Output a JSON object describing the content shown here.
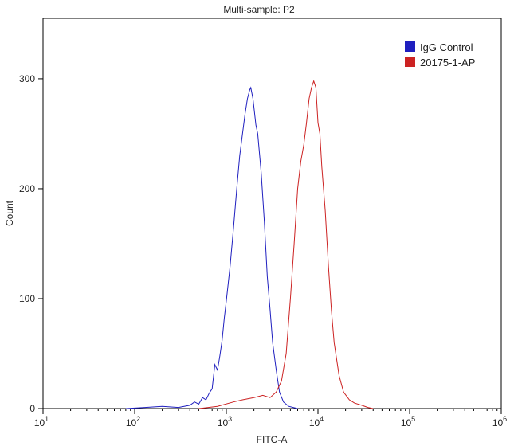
{
  "chart_data": {
    "type": "line",
    "title": "Multi-sample: P2",
    "xlabel": "FITC-A",
    "ylabel": "Count",
    "x_scale": "log",
    "xlim": [
      10,
      1000000
    ],
    "ylim": [
      0,
      355
    ],
    "x_ticks": [
      {
        "value": 10,
        "base": "10",
        "exp": "1"
      },
      {
        "value": 100,
        "base": "10",
        "exp": "2"
      },
      {
        "value": 1000,
        "base": "10",
        "exp": "3"
      },
      {
        "value": 10000,
        "base": "10",
        "exp": "4"
      },
      {
        "value": 100000,
        "base": "10",
        "exp": "5"
      },
      {
        "value": 1000000,
        "base": "10",
        "exp": "6"
      }
    ],
    "y_ticks": [
      0,
      100,
      200,
      300
    ],
    "grid": false,
    "legend_position": "top-right",
    "series": [
      {
        "name": "IgG Control",
        "color": "#1f1fbf",
        "points": [
          [
            80,
            0
          ],
          [
            130,
            1
          ],
          [
            200,
            2
          ],
          [
            300,
            1
          ],
          [
            400,
            3
          ],
          [
            450,
            6
          ],
          [
            500,
            4
          ],
          [
            550,
            10
          ],
          [
            600,
            8
          ],
          [
            650,
            14
          ],
          [
            700,
            18
          ],
          [
            750,
            40
          ],
          [
            800,
            35
          ],
          [
            850,
            48
          ],
          [
            900,
            62
          ],
          [
            950,
            82
          ],
          [
            1000,
            98
          ],
          [
            1100,
            130
          ],
          [
            1200,
            165
          ],
          [
            1300,
            200
          ],
          [
            1400,
            230
          ],
          [
            1500,
            250
          ],
          [
            1600,
            268
          ],
          [
            1700,
            282
          ],
          [
            1800,
            290
          ],
          [
            1850,
            292
          ],
          [
            1950,
            282
          ],
          [
            2100,
            258
          ],
          [
            2200,
            250
          ],
          [
            2400,
            215
          ],
          [
            2600,
            170
          ],
          [
            2800,
            120
          ],
          [
            3000,
            90
          ],
          [
            3200,
            60
          ],
          [
            3500,
            35
          ],
          [
            3800,
            15
          ],
          [
            4200,
            6
          ],
          [
            4800,
            2
          ],
          [
            6000,
            0
          ]
        ]
      },
      {
        "name": "20175-1-AP",
        "color": "#cc2222",
        "points": [
          [
            500,
            0
          ],
          [
            800,
            2
          ],
          [
            1200,
            6
          ],
          [
            1500,
            8
          ],
          [
            2000,
            10
          ],
          [
            2500,
            12
          ],
          [
            3000,
            10
          ],
          [
            3500,
            15
          ],
          [
            4000,
            25
          ],
          [
            4500,
            50
          ],
          [
            5000,
            100
          ],
          [
            5500,
            150
          ],
          [
            6000,
            200
          ],
          [
            6500,
            225
          ],
          [
            7000,
            240
          ],
          [
            7500,
            260
          ],
          [
            8000,
            282
          ],
          [
            8500,
            292
          ],
          [
            9000,
            298
          ],
          [
            9500,
            292
          ],
          [
            10000,
            260
          ],
          [
            10500,
            250
          ],
          [
            11000,
            220
          ],
          [
            12000,
            180
          ],
          [
            13000,
            130
          ],
          [
            14000,
            90
          ],
          [
            15000,
            60
          ],
          [
            17000,
            30
          ],
          [
            19000,
            15
          ],
          [
            22000,
            8
          ],
          [
            25000,
            5
          ],
          [
            30000,
            3
          ],
          [
            35000,
            1
          ],
          [
            40000,
            0
          ]
        ]
      }
    ]
  }
}
